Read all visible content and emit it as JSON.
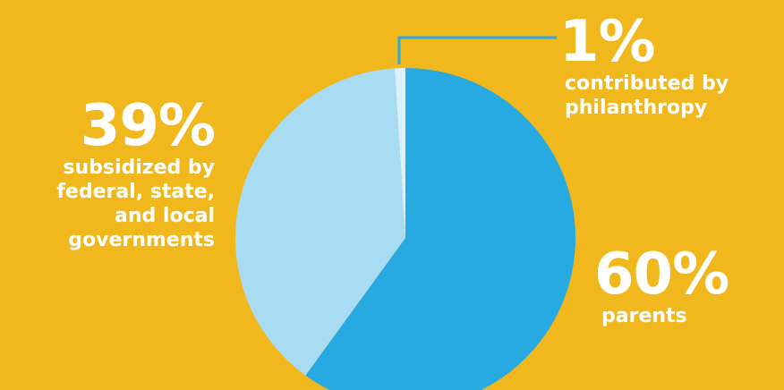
{
  "background_color": "#f0b81c",
  "chart_data": {
    "type": "pie",
    "slices": [
      {
        "value": 60,
        "percent_label": "60%",
        "description": "parents",
        "color": "#27a9e1"
      },
      {
        "value": 39,
        "percent_label": "39%",
        "description": "subsidized by federal, state, and local governments",
        "color": "#a8dcf3"
      },
      {
        "value": 1,
        "percent_label": "1%",
        "description": "contributed by philanthropy",
        "color": "#daf1fb"
      }
    ],
    "leader_line_color": "#27a9e1"
  }
}
